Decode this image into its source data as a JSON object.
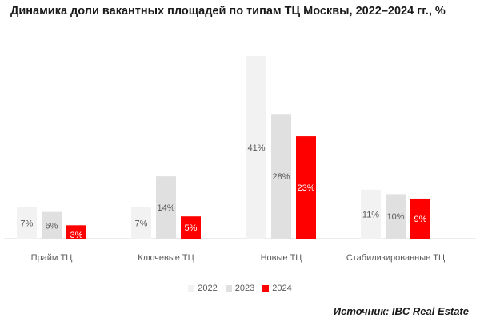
{
  "title": "Динамика доли вакантных площадей по типам ТЦ Москвы, 2022–2024 гг., %",
  "source": "Источник: IBC Real Estate",
  "chart_data": {
    "type": "bar",
    "categories": [
      "Прайм ТЦ",
      "Ключевые ТЦ",
      "Новые ТЦ",
      "Стабилизированные ТЦ"
    ],
    "series": [
      {
        "name": "2022",
        "color": "#f2f2f2",
        "values": [
          7,
          7,
          41,
          11
        ],
        "labels": [
          "7%",
          "7%",
          "41%",
          "11%"
        ]
      },
      {
        "name": "2023",
        "color": "#e0e0e0",
        "values": [
          6,
          14,
          28,
          10
        ],
        "labels": [
          "6%",
          "14%",
          "28%",
          "10%"
        ]
      },
      {
        "name": "2024",
        "color": "#ff0000",
        "values": [
          3,
          5,
          23,
          9
        ],
        "labels": [
          "3%",
          "5%",
          "23%",
          "9%"
        ]
      }
    ],
    "ylim": [
      0,
      41
    ],
    "legend_position": "bottom",
    "grid": false
  }
}
